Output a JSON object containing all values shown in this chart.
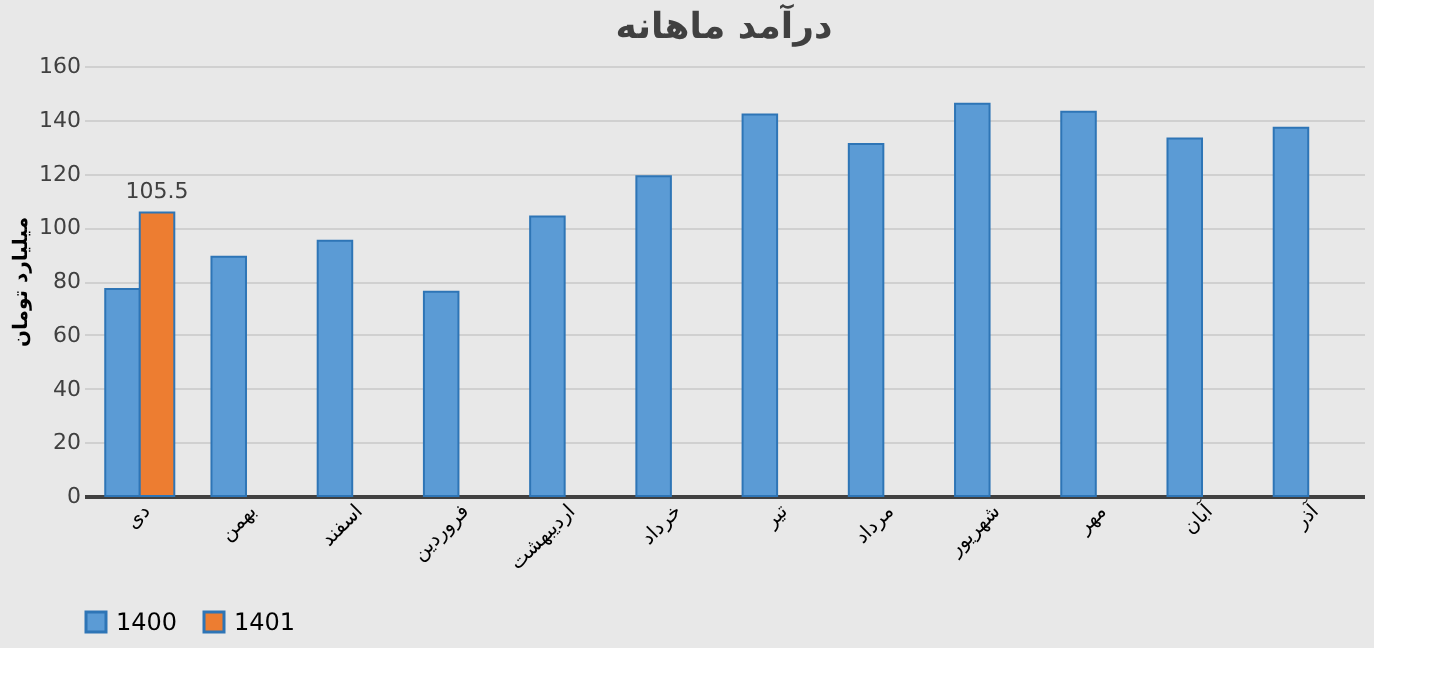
{
  "chart_data": {
    "type": "bar",
    "title": "درآمد ماهانه",
    "ylabel": "میلیارد تومان",
    "categories": [
      "دی",
      "بهمن",
      "اسفند",
      "فروردین",
      "اردیبهشت",
      "خرداد",
      "تیر",
      "مرداد",
      "شهریور",
      "مهر",
      "آبان",
      "آذر"
    ],
    "series": [
      {
        "name": "1400",
        "color": "#5b9bd5",
        "values": [
          77,
          89,
          95,
          76,
          104,
          119,
          142,
          131,
          146,
          143,
          133,
          137
        ]
      },
      {
        "name": "1401",
        "color": "#ed7d31",
        "values": [
          105.5,
          null,
          null,
          null,
          null,
          null,
          null,
          null,
          null,
          null,
          null,
          null
        ],
        "value_labels": [
          "105.5",
          null,
          null,
          null,
          null,
          null,
          null,
          null,
          null,
          null,
          null,
          null
        ]
      }
    ],
    "ylim": [
      0,
      160
    ],
    "yticks": [
      0,
      20,
      40,
      60,
      80,
      100,
      120,
      140,
      160
    ],
    "grid": "y",
    "legend": "bottom"
  }
}
